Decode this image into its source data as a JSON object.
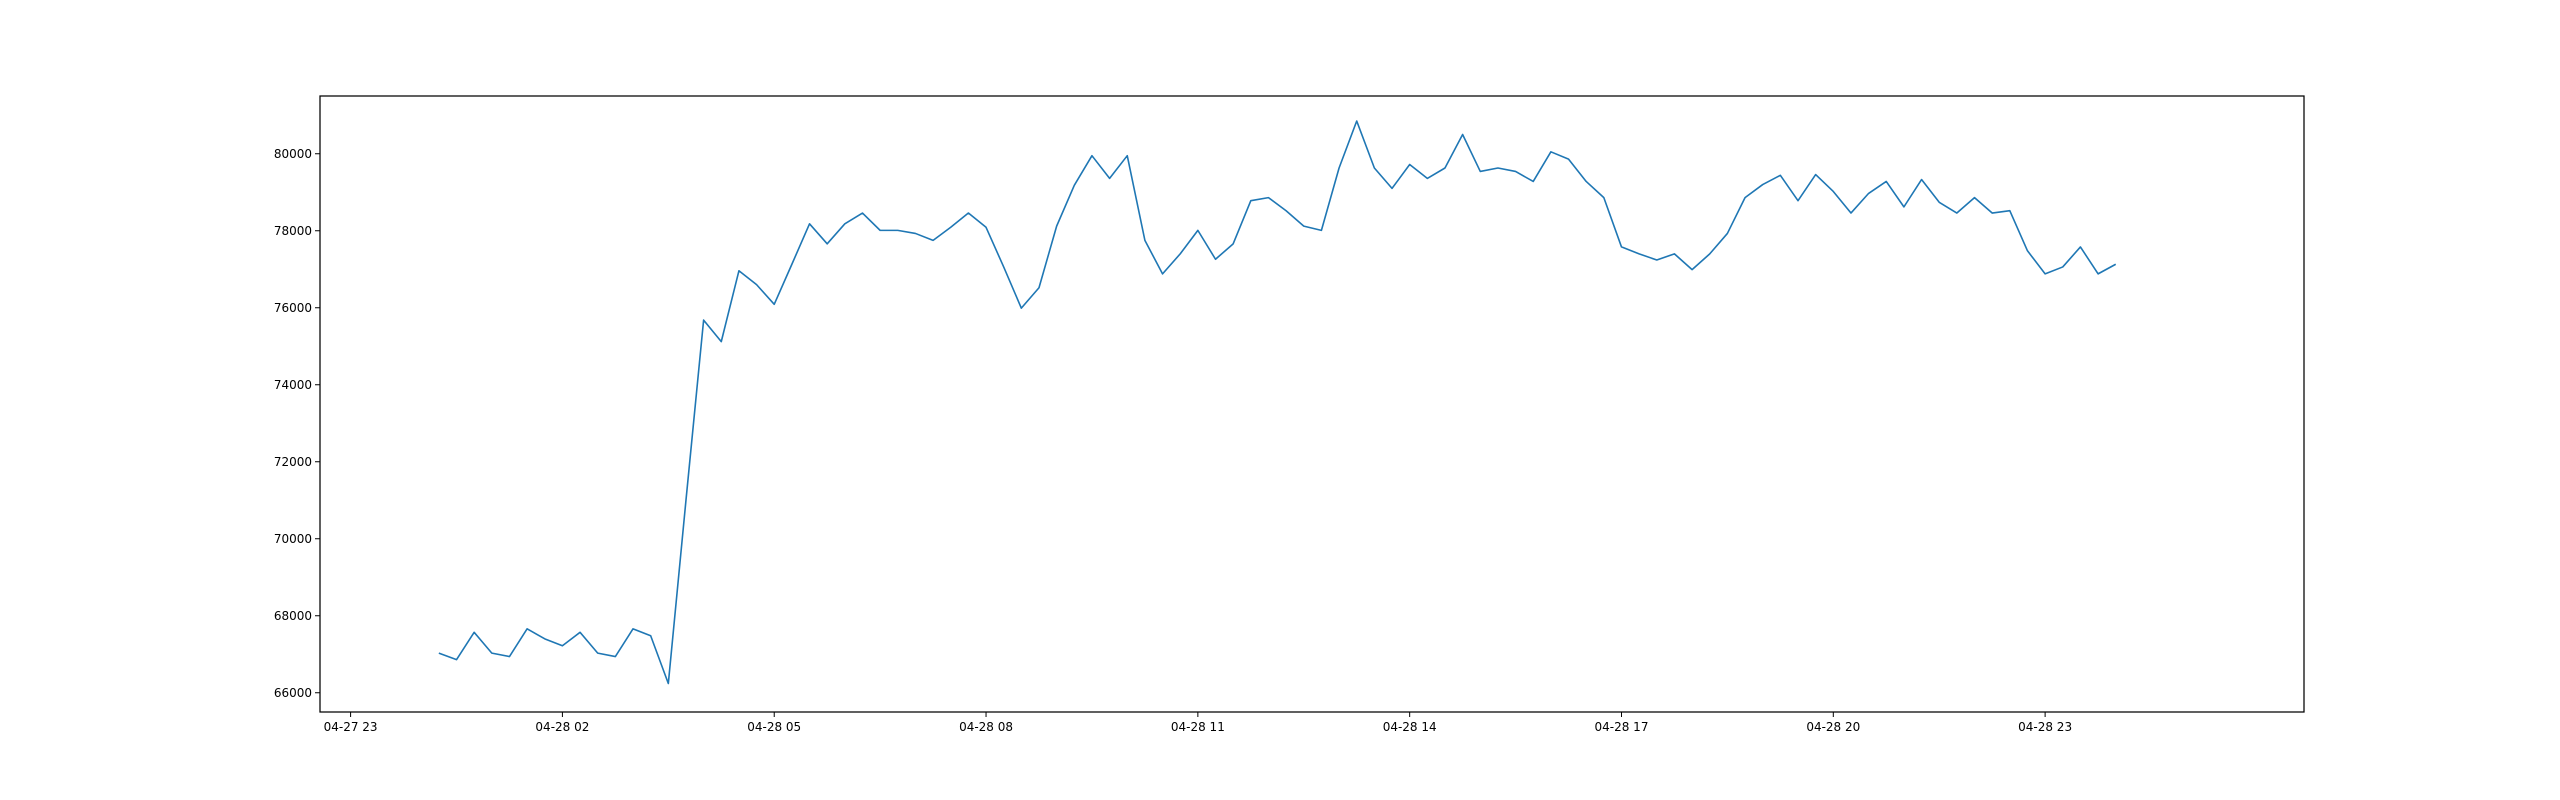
{
  "chart_data": {
    "type": "line",
    "title": "",
    "xlabel": "",
    "ylabel": "",
    "grid": false,
    "xlim": [
      "2024-04-27 22:34",
      "2024-04-29 02:40"
    ],
    "ylim": [
      65500,
      81500
    ],
    "x_ticks": [
      {
        "value": "2024-04-27 23:00",
        "label": "04-27 23"
      },
      {
        "value": "2024-04-28 02:00",
        "label": "04-28 02"
      },
      {
        "value": "2024-04-28 05:00",
        "label": "04-28 05"
      },
      {
        "value": "2024-04-28 08:00",
        "label": "04-28 08"
      },
      {
        "value": "2024-04-28 11:00",
        "label": "04-28 11"
      },
      {
        "value": "2024-04-28 14:00",
        "label": "04-28 14"
      },
      {
        "value": "2024-04-28 17:00",
        "label": "04-28 17"
      },
      {
        "value": "2024-04-28 20:00",
        "label": "04-28 20"
      },
      {
        "value": "2024-04-28 23:00",
        "label": "04-28 23"
      }
    ],
    "y_ticks": [
      {
        "value": 66000,
        "label": "66000"
      },
      {
        "value": 68000,
        "label": "68000"
      },
      {
        "value": 70000,
        "label": "70000"
      },
      {
        "value": 72000,
        "label": "72000"
      },
      {
        "value": 74000,
        "label": "74000"
      },
      {
        "value": 76000,
        "label": "76000"
      },
      {
        "value": 78000,
        "label": "78000"
      },
      {
        "value": 80000,
        "label": "80000"
      }
    ],
    "series": [
      {
        "color": "#1f77b4",
        "x": [
          "2024-04-28 00:15",
          "2024-04-28 00:30",
          "2024-04-28 00:45",
          "2024-04-28 01:00",
          "2024-04-28 01:15",
          "2024-04-28 01:30",
          "2024-04-28 01:45",
          "2024-04-28 02:00",
          "2024-04-28 02:15",
          "2024-04-28 02:30",
          "2024-04-28 02:45",
          "2024-04-28 03:00",
          "2024-04-28 03:15",
          "2024-04-28 03:30",
          "2024-04-28 03:45",
          "2024-04-28 04:00",
          "2024-04-28 04:15",
          "2024-04-28 04:30",
          "2024-04-28 04:45",
          "2024-04-28 05:00",
          "2024-04-28 05:15",
          "2024-04-28 05:30",
          "2024-04-28 05:45",
          "2024-04-28 06:00",
          "2024-04-28 06:15",
          "2024-04-28 06:30",
          "2024-04-28 06:45",
          "2024-04-28 07:00",
          "2024-04-28 07:15",
          "2024-04-28 07:30",
          "2024-04-28 07:45",
          "2024-04-28 08:00",
          "2024-04-28 08:15",
          "2024-04-28 08:30",
          "2024-04-28 08:45",
          "2024-04-28 09:00",
          "2024-04-28 09:15",
          "2024-04-28 09:30",
          "2024-04-28 09:45",
          "2024-04-28 10:00",
          "2024-04-28 10:15",
          "2024-04-28 10:30",
          "2024-04-28 10:45",
          "2024-04-28 11:00",
          "2024-04-28 11:15",
          "2024-04-28 11:30",
          "2024-04-28 11:45",
          "2024-04-28 12:00",
          "2024-04-28 12:15",
          "2024-04-28 12:30",
          "2024-04-28 12:45",
          "2024-04-28 13:00",
          "2024-04-28 13:15",
          "2024-04-28 13:30",
          "2024-04-28 13:45",
          "2024-04-28 14:00",
          "2024-04-28 14:15",
          "2024-04-28 14:30",
          "2024-04-28 14:45",
          "2024-04-28 15:00",
          "2024-04-28 15:15",
          "2024-04-28 15:30",
          "2024-04-28 15:45",
          "2024-04-28 16:00",
          "2024-04-28 16:15",
          "2024-04-28 16:30",
          "2024-04-28 16:45",
          "2024-04-28 17:00",
          "2024-04-28 17:15",
          "2024-04-28 17:30",
          "2024-04-28 17:45",
          "2024-04-28 18:00",
          "2024-04-28 18:15",
          "2024-04-28 18:30",
          "2024-04-28 18:45",
          "2024-04-28 19:00",
          "2024-04-28 19:15",
          "2024-04-28 19:30",
          "2024-04-28 19:45",
          "2024-04-28 20:00",
          "2024-04-28 20:15",
          "2024-04-28 20:30",
          "2024-04-28 20:45",
          "2024-04-28 21:00",
          "2024-04-28 21:15",
          "2024-04-28 21:30",
          "2024-04-28 21:45",
          "2024-04-28 22:00",
          "2024-04-28 22:15",
          "2024-04-28 22:30",
          "2024-04-28 22:45",
          "2024-04-28 23:00",
          "2024-04-28 23:15",
          "2024-04-28 23:30",
          "2024-04-28 23:45",
          "2024-04-29 00:00"
        ],
        "y": [
          67030,
          66860,
          67570,
          67030,
          66940,
          67660,
          67400,
          67220,
          67570,
          67030,
          66940,
          67660,
          67480,
          66240,
          71000,
          75680,
          75120,
          76960,
          76600,
          76090,
          77130,
          78180,
          77660,
          78180,
          78460,
          78010,
          78010,
          77930,
          77750,
          78090,
          78460,
          78090,
          77060,
          75990,
          76520,
          78120,
          79180,
          79950,
          79360,
          79950,
          77750,
          76880,
          77400,
          78010,
          77260,
          77660,
          78780,
          78860,
          78520,
          78120,
          78010,
          79630,
          80850,
          79630,
          79100,
          79720,
          79360,
          79630,
          80500,
          79540,
          79630,
          79540,
          79280,
          80050,
          79860,
          79280,
          78860,
          77580,
          77400,
          77240,
          77400,
          76990,
          77400,
          77930,
          78860,
          79200,
          79440,
          78780,
          79460,
          79020,
          78460,
          78970,
          79280,
          78620,
          79330,
          78740,
          78460,
          78860,
          78460,
          78520,
          77480,
          76880,
          77060,
          77580,
          76880,
          77130
        ]
      }
    ]
  }
}
